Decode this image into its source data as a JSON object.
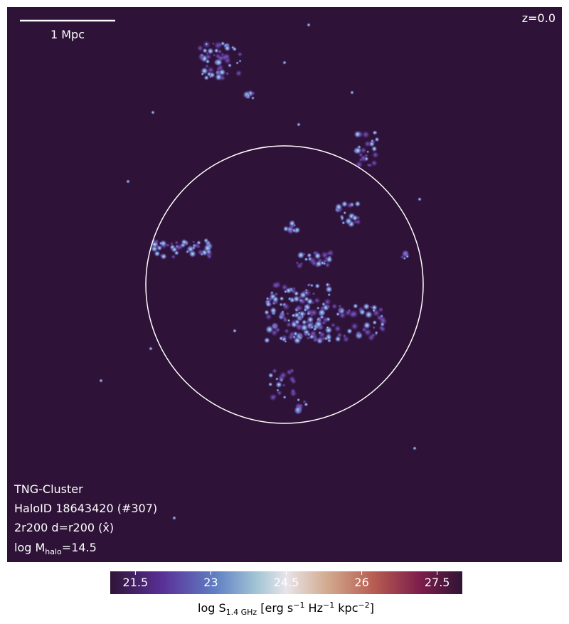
{
  "chart_data": {
    "type": "image",
    "annotations": {
      "redshift": "z=0.0",
      "scale_bar": "1 Mpc",
      "simulation": "TNG-Cluster",
      "halo_id": "HaloID 18643420 (#307)",
      "projection": "2r200 d=r200 (x̂)",
      "halo_mass": [
        "log M",
        "halo",
        "=14.5"
      ]
    },
    "colorbar": {
      "label": [
        "log S",
        "1.4 GHz",
        " [erg s",
        "−1",
        " Hz",
        "−1",
        " kpc",
        "−2",
        "]"
      ],
      "clim": [
        21.0,
        28.0
      ],
      "ticks": [
        21.5,
        23.0,
        24.5,
        26.0,
        27.5
      ]
    }
  }
}
